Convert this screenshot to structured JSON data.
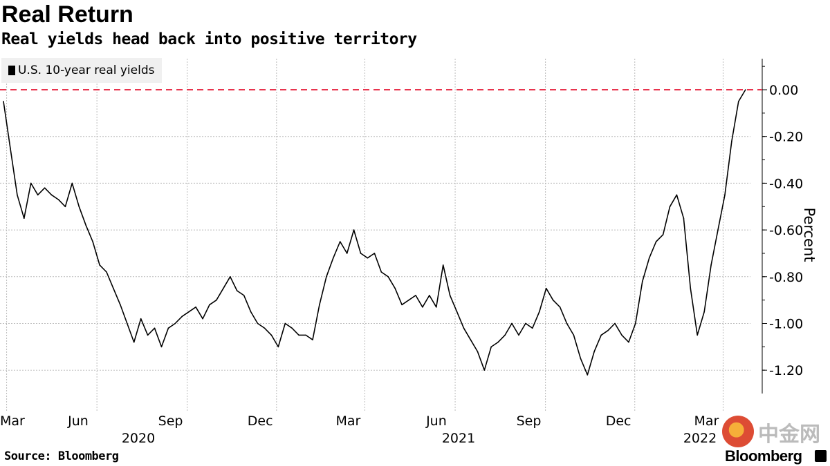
{
  "title": "Real Return",
  "subtitle": "Real yields head back into positive territory",
  "source": "Source: Bloomberg",
  "brand": "Bloomberg",
  "watermark": "中金网",
  "chart_data": {
    "type": "line",
    "title": "Real Return",
    "subtitle": "Real yields head back into positive territory",
    "ylabel": "Percent",
    "xlabel": "",
    "ylim": [
      -1.3,
      0.13
    ],
    "xlim": [
      "2020-03-01",
      "2022-04-05"
    ],
    "grid": true,
    "legend_position": "top-left",
    "y_ticks": [
      "0.00",
      "-0.20",
      "-0.40",
      "-0.60",
      "-0.80",
      "-1.00",
      "-1.20"
    ],
    "y_tick_values": [
      0,
      -0.2,
      -0.4,
      -0.6,
      -0.8,
      -1.0,
      -1.2
    ],
    "x_ticks": [
      {
        "date": "2020-03-01",
        "label": "Mar",
        "year": ""
      },
      {
        "date": "2020-06-01",
        "label": "Jun",
        "year": ""
      },
      {
        "date": "2020-09-01",
        "label": "Sep",
        "year": "2020"
      },
      {
        "date": "2020-12-01",
        "label": "Dec",
        "year": ""
      },
      {
        "date": "2021-03-01",
        "label": "Mar",
        "year": ""
      },
      {
        "date": "2021-06-01",
        "label": "Jun",
        "year": "2021"
      },
      {
        "date": "2021-09-01",
        "label": "Sep",
        "year": ""
      },
      {
        "date": "2021-12-01",
        "label": "Dec",
        "year": ""
      },
      {
        "date": "2022-03-01",
        "label": "Mar",
        "year": "2022"
      }
    ],
    "reference_line": {
      "value": 0,
      "color": "#e8344e",
      "style": "dashed"
    },
    "series": [
      {
        "name": "U.S. 10-year real yields",
        "color": "#000000",
        "points": [
          [
            "2020-03-02",
            -0.05
          ],
          [
            "2020-03-09",
            -0.25
          ],
          [
            "2020-03-16",
            -0.45
          ],
          [
            "2020-03-23",
            -0.55
          ],
          [
            "2020-03-30",
            -0.4
          ],
          [
            "2020-04-06",
            -0.45
          ],
          [
            "2020-04-13",
            -0.42
          ],
          [
            "2020-04-20",
            -0.45
          ],
          [
            "2020-04-27",
            -0.47
          ],
          [
            "2020-05-04",
            -0.5
          ],
          [
            "2020-05-11",
            -0.4
          ],
          [
            "2020-05-18",
            -0.5
          ],
          [
            "2020-05-25",
            -0.58
          ],
          [
            "2020-06-01",
            -0.65
          ],
          [
            "2020-06-08",
            -0.75
          ],
          [
            "2020-06-15",
            -0.78
          ],
          [
            "2020-06-22",
            -0.85
          ],
          [
            "2020-06-29",
            -0.92
          ],
          [
            "2020-07-06",
            -1.0
          ],
          [
            "2020-07-13",
            -1.08
          ],
          [
            "2020-07-20",
            -0.98
          ],
          [
            "2020-07-27",
            -1.05
          ],
          [
            "2020-08-03",
            -1.02
          ],
          [
            "2020-08-10",
            -1.1
          ],
          [
            "2020-08-17",
            -1.02
          ],
          [
            "2020-08-24",
            -1.0
          ],
          [
            "2020-08-31",
            -0.97
          ],
          [
            "2020-09-07",
            -0.95
          ],
          [
            "2020-09-14",
            -0.93
          ],
          [
            "2020-09-21",
            -0.98
          ],
          [
            "2020-09-28",
            -0.92
          ],
          [
            "2020-10-05",
            -0.9
          ],
          [
            "2020-10-12",
            -0.85
          ],
          [
            "2020-10-19",
            -0.8
          ],
          [
            "2020-10-26",
            -0.86
          ],
          [
            "2020-11-02",
            -0.88
          ],
          [
            "2020-11-09",
            -0.95
          ],
          [
            "2020-11-16",
            -1.0
          ],
          [
            "2020-11-23",
            -1.02
          ],
          [
            "2020-11-30",
            -1.05
          ],
          [
            "2020-12-07",
            -1.1
          ],
          [
            "2020-12-14",
            -1.0
          ],
          [
            "2020-12-21",
            -1.02
          ],
          [
            "2020-12-28",
            -1.05
          ],
          [
            "2021-01-04",
            -1.05
          ],
          [
            "2021-01-11",
            -1.07
          ],
          [
            "2021-01-18",
            -0.92
          ],
          [
            "2021-01-25",
            -0.8
          ],
          [
            "2021-02-01",
            -0.72
          ],
          [
            "2021-02-08",
            -0.65
          ],
          [
            "2021-02-15",
            -0.7
          ],
          [
            "2021-02-22",
            -0.6
          ],
          [
            "2021-03-01",
            -0.7
          ],
          [
            "2021-03-08",
            -0.72
          ],
          [
            "2021-03-15",
            -0.7
          ],
          [
            "2021-03-22",
            -0.78
          ],
          [
            "2021-03-29",
            -0.8
          ],
          [
            "2021-04-05",
            -0.85
          ],
          [
            "2021-04-12",
            -0.92
          ],
          [
            "2021-04-19",
            -0.9
          ],
          [
            "2021-04-26",
            -0.88
          ],
          [
            "2021-05-03",
            -0.93
          ],
          [
            "2021-05-10",
            -0.88
          ],
          [
            "2021-05-17",
            -0.93
          ],
          [
            "2021-05-24",
            -0.75
          ],
          [
            "2021-05-31",
            -0.88
          ],
          [
            "2021-06-07",
            -0.95
          ],
          [
            "2021-06-14",
            -1.02
          ],
          [
            "2021-06-21",
            -1.07
          ],
          [
            "2021-06-28",
            -1.12
          ],
          [
            "2021-07-05",
            -1.2
          ],
          [
            "2021-07-12",
            -1.1
          ],
          [
            "2021-07-19",
            -1.08
          ],
          [
            "2021-07-26",
            -1.05
          ],
          [
            "2021-08-02",
            -1.0
          ],
          [
            "2021-08-09",
            -1.05
          ],
          [
            "2021-08-16",
            -1.0
          ],
          [
            "2021-08-23",
            -1.02
          ],
          [
            "2021-08-30",
            -0.95
          ],
          [
            "2021-09-06",
            -0.85
          ],
          [
            "2021-09-13",
            -0.9
          ],
          [
            "2021-09-20",
            -0.93
          ],
          [
            "2021-09-27",
            -1.0
          ],
          [
            "2021-10-04",
            -1.05
          ],
          [
            "2021-10-11",
            -1.15
          ],
          [
            "2021-10-18",
            -1.22
          ],
          [
            "2021-10-25",
            -1.12
          ],
          [
            "2021-11-01",
            -1.05
          ],
          [
            "2021-11-08",
            -1.03
          ],
          [
            "2021-11-15",
            -1.0
          ],
          [
            "2021-11-22",
            -1.05
          ],
          [
            "2021-11-29",
            -1.08
          ],
          [
            "2021-12-06",
            -1.0
          ],
          [
            "2021-12-13",
            -0.82
          ],
          [
            "2021-12-20",
            -0.72
          ],
          [
            "2021-12-27",
            -0.65
          ],
          [
            "2022-01-03",
            -0.62
          ],
          [
            "2022-01-10",
            -0.5
          ],
          [
            "2022-01-17",
            -0.45
          ],
          [
            "2022-01-24",
            -0.55
          ],
          [
            "2022-01-31",
            -0.85
          ],
          [
            "2022-02-07",
            -1.05
          ],
          [
            "2022-02-14",
            -0.95
          ],
          [
            "2022-02-21",
            -0.75
          ],
          [
            "2022-02-28",
            -0.6
          ],
          [
            "2022-03-07",
            -0.45
          ],
          [
            "2022-03-14",
            -0.22
          ],
          [
            "2022-03-21",
            -0.05
          ],
          [
            "2022-03-28",
            0.0
          ]
        ]
      }
    ]
  }
}
